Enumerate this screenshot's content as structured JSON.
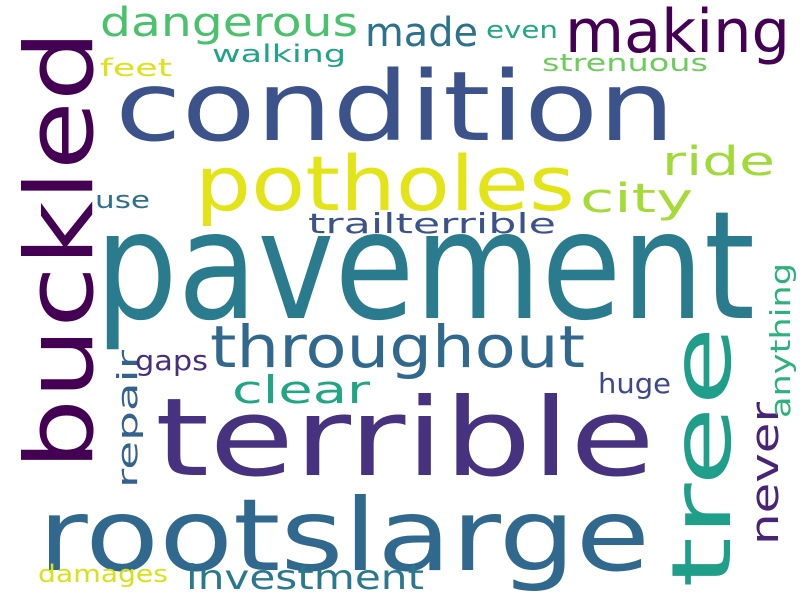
{
  "words": [
    {
      "text": "pavement",
      "color": "#2a7b8e"
    },
    {
      "text": "terrible",
      "color": "#46327e"
    },
    {
      "text": "rootslarge",
      "color": "#31688e"
    },
    {
      "text": "condition",
      "color": "#3b528b"
    },
    {
      "text": "buckled",
      "color": "#440154"
    },
    {
      "text": "potholes",
      "color": "#e3e418"
    },
    {
      "text": "tree",
      "color": "#1f9e89"
    },
    {
      "text": "throughout",
      "color": "#31688e"
    },
    {
      "text": "making",
      "color": "#440154"
    },
    {
      "text": "dangerous",
      "color": "#4ac16d"
    },
    {
      "text": "made",
      "color": "#2c728e"
    },
    {
      "text": "ride",
      "color": "#a0da39"
    },
    {
      "text": "city",
      "color": "#a5db36"
    },
    {
      "text": "clear",
      "color": "#21a685"
    },
    {
      "text": "never",
      "color": "#482475"
    },
    {
      "text": "investment",
      "color": "#2a788e"
    },
    {
      "text": "trailterrible",
      "color": "#3b528b"
    },
    {
      "text": "repair",
      "color": "#34618d"
    },
    {
      "text": "anything",
      "color": "#2db27d"
    },
    {
      "text": "huge",
      "color": "#3e4989"
    },
    {
      "text": "gaps",
      "color": "#472f7d"
    },
    {
      "text": "damages",
      "color": "#d8e219"
    },
    {
      "text": "walking",
      "color": "#20a386"
    },
    {
      "text": "even",
      "color": "#22a884"
    },
    {
      "text": "strenuous",
      "color": "#6ccd5a"
    },
    {
      "text": "use",
      "color": "#2d708e"
    },
    {
      "text": "feet",
      "color": "#dde318"
    }
  ]
}
